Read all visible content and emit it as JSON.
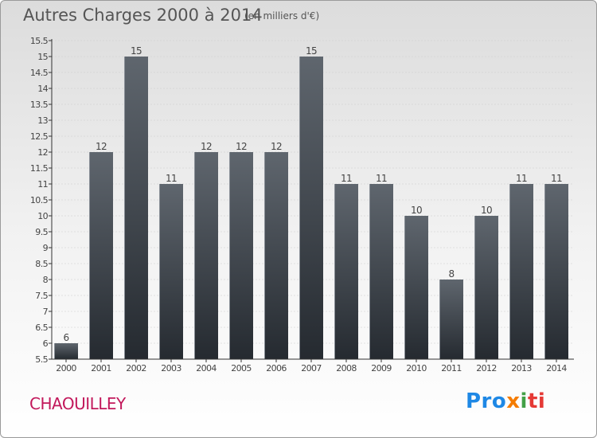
{
  "title": "Autres Charges 2000 à 2014",
  "subtitle": "(en milliers d'€)",
  "commune": "CHAOUILLEY",
  "brand": "Proxiti",
  "colors": {
    "bar": "#4a5058",
    "bar_highlight": "#5f666e",
    "axis": "#333333",
    "grid": "#cccccc",
    "commune": "#c2185b"
  },
  "chart_data": {
    "type": "bar",
    "title": "Autres Charges 2000 à 2014",
    "subtitle": "(en milliers d'€)",
    "xlabel": "",
    "ylabel": "",
    "categories": [
      "2000",
      "2001",
      "2002",
      "2003",
      "2004",
      "2005",
      "2006",
      "2007",
      "2008",
      "2009",
      "2010",
      "2011",
      "2012",
      "2013",
      "2014"
    ],
    "values": [
      6,
      12,
      15,
      11,
      12,
      12,
      12,
      15,
      11,
      11,
      10,
      8,
      10,
      11,
      11
    ],
    "ylim": [
      5.5,
      15.5
    ],
    "yticks": [
      "5.5",
      "6",
      "6.5",
      "7",
      "7.5",
      "8",
      "8.5",
      "9",
      "9.5",
      "10",
      "10.5",
      "11",
      "11.5",
      "12",
      "12.5",
      "13",
      "13.5",
      "14",
      "14.5",
      "15",
      "15.5"
    ],
    "data_labels": true,
    "grid": true,
    "legend": "none"
  }
}
